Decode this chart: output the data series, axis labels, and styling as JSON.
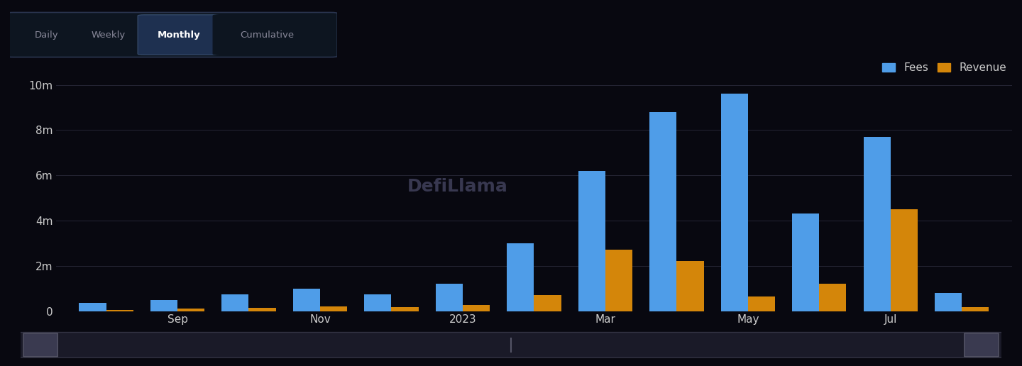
{
  "month_labels": [
    "",
    "Sep",
    "",
    "Nov",
    "",
    "2023",
    "",
    "Mar",
    "",
    "May",
    "",
    "Jul",
    ""
  ],
  "fees": [
    0.35,
    0.5,
    0.75,
    1.0,
    0.75,
    1.2,
    3.0,
    6.2,
    8.8,
    9.6,
    4.3,
    7.7,
    0.8
  ],
  "revenue": [
    0.04,
    0.1,
    0.15,
    0.2,
    0.18,
    0.28,
    0.7,
    2.7,
    2.2,
    0.65,
    1.2,
    4.5,
    0.18
  ],
  "fees_color": "#4f9de8",
  "revenue_color": "#d4860a",
  "bg_color": "#080810",
  "grid_color": "#252535",
  "text_color": "#cccccc",
  "yticks": [
    0,
    2000000,
    4000000,
    6000000,
    8000000,
    10000000
  ],
  "ytick_labels": [
    "0",
    "2m",
    "4m",
    "6m",
    "8m",
    "10m"
  ],
  "ylim": [
    0,
    11000000
  ],
  "bar_width": 0.38,
  "legend_fees": "Fees",
  "legend_revenue": "Revenue",
  "tab_labels": [
    "Daily",
    "Weekly",
    "Monthly",
    "Cumulative"
  ],
  "tab_active": "Monthly"
}
